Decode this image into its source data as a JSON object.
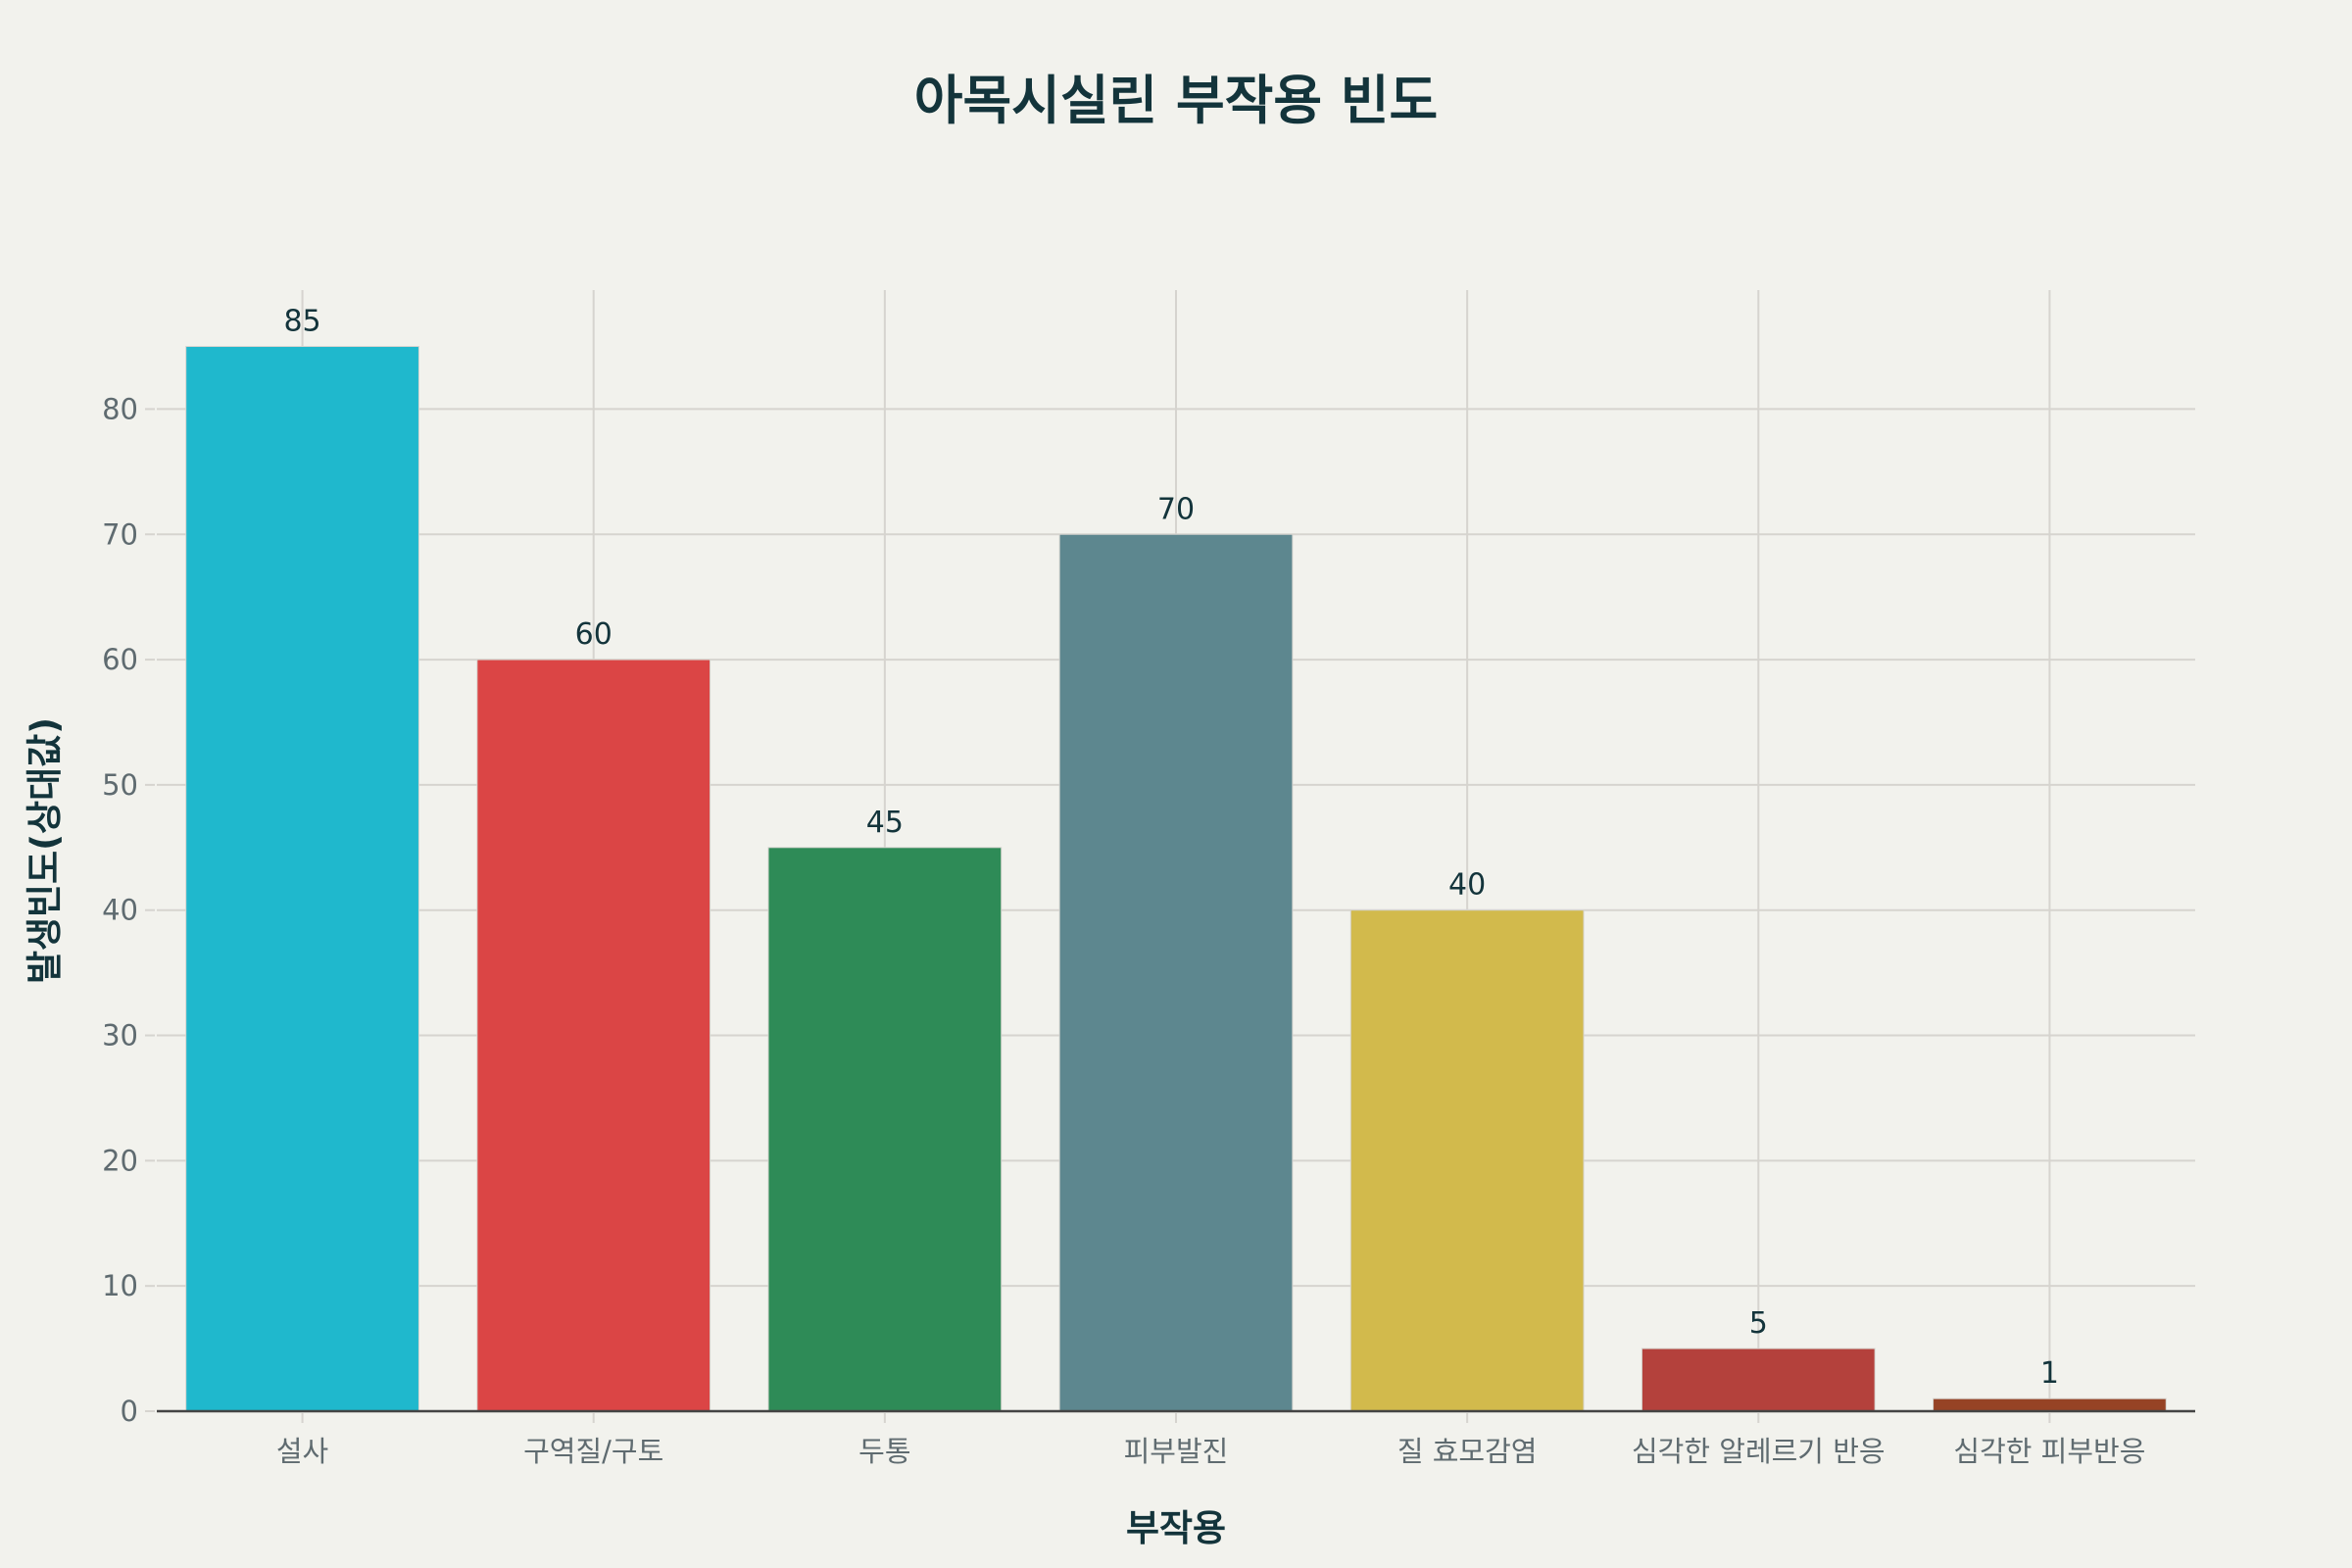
{
  "chart_data": {
    "type": "bar",
    "title": "아목시실린 부작용 빈도",
    "xlabel": "부작용",
    "ylabel": "발생빈도(상대값)",
    "categories": [
      "설사",
      "구역질/구토",
      "두통",
      "피부발진",
      "질 효모감염",
      "심각한 알레르기 반응",
      "심각한 피부반응"
    ],
    "values": [
      85,
      60,
      45,
      70,
      40,
      5,
      1
    ],
    "colors": [
      "#1fb8cd",
      "#db4545",
      "#2e8b57",
      "#5d878f",
      "#d2ba4c",
      "#b4413c",
      "#964325"
    ],
    "yticks": [
      0,
      10,
      20,
      30,
      40,
      50,
      60,
      70,
      80
    ],
    "ylim": [
      0,
      89.5
    ],
    "grid": true,
    "legend": false,
    "data_labels": true
  }
}
